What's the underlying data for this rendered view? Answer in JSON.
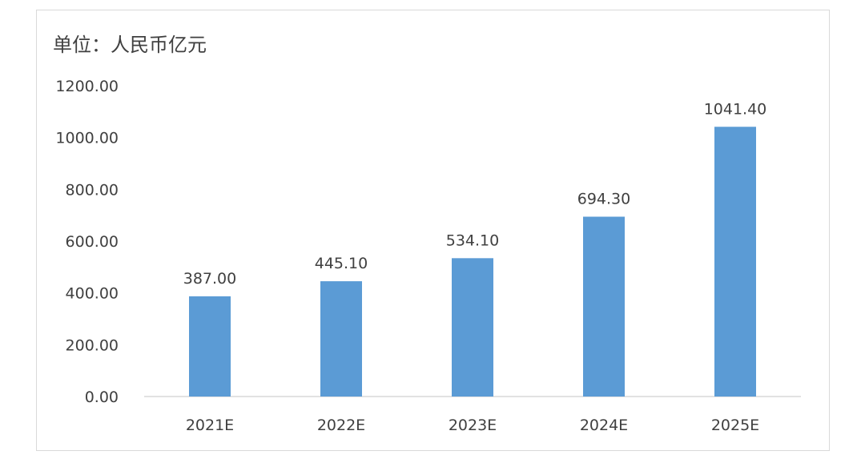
{
  "chart_data": {
    "type": "bar",
    "unit_label": "单位：人民币亿元",
    "categories": [
      "2021E",
      "2022E",
      "2023E",
      "2024E",
      "2025E"
    ],
    "values": [
      387.0,
      445.1,
      534.1,
      694.3,
      1041.4
    ],
    "data_labels": [
      "387.00",
      "445.10",
      "534.10",
      "694.30",
      "1041.40"
    ],
    "y_ticks": [
      "0.00",
      "200.00",
      "400.00",
      "600.00",
      "800.00",
      "1000.00",
      "1200.00"
    ],
    "ylim": [
      0,
      1200
    ],
    "grid": false,
    "legend": "none",
    "bar_color": "#5b9bd5",
    "axis_color": "#d9d9d9",
    "text_color": "#404040"
  }
}
